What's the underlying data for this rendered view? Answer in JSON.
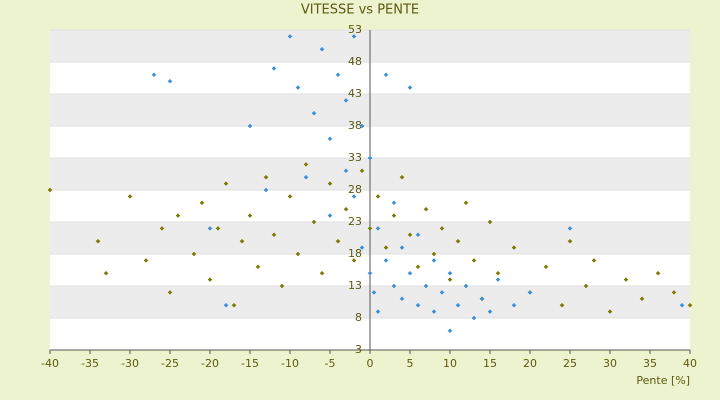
{
  "chart_data": {
    "type": "scatter",
    "title": "VITESSE vs PENTE",
    "x_label": "Pente [%]",
    "xlim": [
      -40,
      40
    ],
    "xticks": [
      -40,
      -35,
      -30,
      -25,
      -20,
      -15,
      -10,
      -5,
      0,
      5,
      10,
      15,
      20,
      25,
      30,
      35,
      40
    ],
    "ylim": [
      3,
      53
    ],
    "yticks": [
      3,
      8,
      13,
      18,
      23,
      28,
      33,
      38,
      43,
      48,
      53
    ],
    "grid": true,
    "series": [
      {
        "color": "#7a7a00",
        "x": [
          -40,
          -34,
          -33,
          -30,
          -28,
          -26,
          -25,
          -24,
          -22,
          -21,
          -20,
          -19,
          -18,
          -17,
          -16,
          -15,
          -14,
          -13,
          -12,
          -11,
          -10,
          -9,
          -8,
          -7,
          -6,
          -5,
          -4,
          -3,
          -2,
          -1,
          0,
          1,
          2,
          3,
          4,
          5,
          6,
          7,
          8,
          9,
          10,
          11,
          12,
          13,
          14,
          15,
          16,
          18,
          20,
          22,
          24,
          25,
          27,
          28,
          30,
          32,
          34,
          36,
          38,
          40
        ],
        "values": [
          28,
          20,
          15,
          27,
          17,
          22,
          12,
          24,
          18,
          26,
          14,
          22,
          29,
          10,
          20,
          24,
          16,
          30,
          21,
          13,
          27,
          18,
          32,
          23,
          15,
          29,
          20,
          25,
          17,
          31,
          22,
          27,
          19,
          24,
          30,
          21,
          16,
          25,
          18,
          22,
          14,
          20,
          26,
          17,
          11,
          23,
          15,
          19,
          12,
          16,
          10,
          20,
          13,
          17,
          9,
          14,
          11,
          15,
          12,
          10
        ]
      },
      {
        "color": "#3a8fd8",
        "x": [
          -27,
          -25,
          -20,
          -18,
          -15,
          -13,
          -12,
          -10,
          -9,
          -8,
          -7,
          -6,
          -5,
          -5,
          -4,
          -3,
          -3,
          -2,
          -2,
          -1,
          -1,
          0,
          0,
          0.5,
          1,
          1,
          2,
          2,
          3,
          3,
          4,
          4,
          5,
          5,
          6,
          6,
          7,
          8,
          8,
          9,
          10,
          10,
          11,
          12,
          13,
          14,
          15,
          16,
          18,
          20,
          25,
          39
        ],
        "values": [
          46,
          45,
          22,
          10,
          38,
          28,
          47,
          52,
          44,
          30,
          40,
          50,
          36,
          24,
          46,
          42,
          31,
          52,
          27,
          38,
          19,
          33,
          15,
          12,
          22,
          9,
          17,
          46,
          13,
          26,
          11,
          19,
          15,
          44,
          10,
          21,
          13,
          17,
          9,
          12,
          15,
          6,
          10,
          13,
          8,
          11,
          9,
          14,
          10,
          12,
          22,
          10
        ]
      }
    ]
  }
}
